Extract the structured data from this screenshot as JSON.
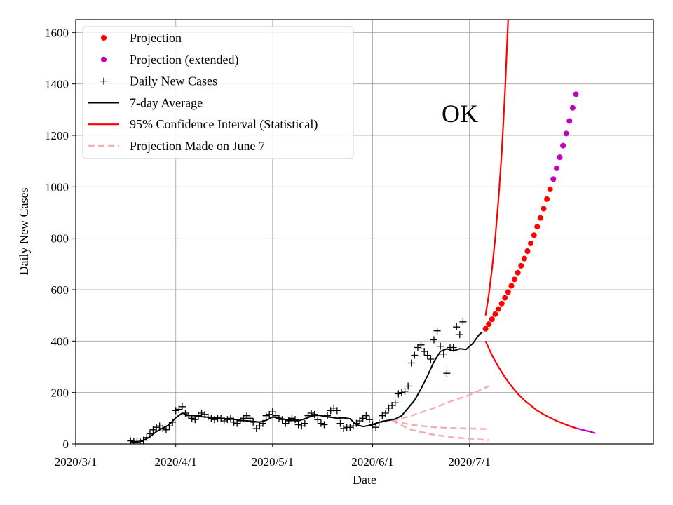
{
  "chart_data": {
    "type": "line",
    "title": "OK",
    "xlabel": "Date",
    "ylabel": "Daily New Cases",
    "ylim": [
      0,
      1650
    ],
    "x_range_days": [
      "2020-03-01",
      "2020-08-27"
    ],
    "x_ticks": [
      {
        "label": "2020/3/1",
        "day": 0
      },
      {
        "label": "2020/4/1",
        "day": 31
      },
      {
        "label": "2020/5/1",
        "day": 61
      },
      {
        "label": "2020/6/1",
        "day": 92
      },
      {
        "label": "2020/7/1",
        "day": 122
      }
    ],
    "y_ticks": [
      0,
      200,
      400,
      600,
      800,
      1000,
      1200,
      1400,
      1600
    ],
    "grid": true,
    "legend_position": "top-left",
    "legend": [
      {
        "label": "Projection",
        "kind": "dot",
        "color": "#ff0000"
      },
      {
        "label": "Projection (extended)",
        "kind": "dot",
        "color": "#bf00bf"
      },
      {
        "label": "Daily New Cases",
        "kind": "plus",
        "color": "#000000"
      },
      {
        "label": "7-day Average",
        "kind": "line",
        "color": "#000000"
      },
      {
        "label": "95% Confidence Interval (Statistical)",
        "kind": "line",
        "color": "#ff0000"
      },
      {
        "label": "Projection Made on June 7",
        "kind": "dash",
        "color": "#f5b0b0"
      }
    ],
    "series": [
      {
        "name": "Daily New Cases",
        "x_start_day": 17,
        "values": [
          12,
          10,
          8,
          10,
          15,
          25,
          40,
          55,
          65,
          70,
          60,
          55,
          70,
          85,
          130,
          135,
          145,
          120,
          110,
          100,
          95,
          110,
          120,
          115,
          105,
          100,
          95,
          100,
          100,
          90,
          95,
          100,
          85,
          80,
          90,
          100,
          110,
          100,
          85,
          60,
          70,
          80,
          110,
          115,
          125,
          110,
          100,
          95,
          80,
          90,
          100,
          95,
          75,
          70,
          80,
          110,
          120,
          115,
          95,
          80,
          75,
          110,
          130,
          140,
          130,
          80,
          60,
          65,
          65,
          70,
          80,
          90,
          100,
          110,
          95,
          75,
          65,
          85,
          110,
          120,
          140,
          150,
          160,
          195,
          200,
          205,
          225,
          315,
          345,
          375,
          385,
          360,
          345,
          330,
          405,
          440,
          380,
          350,
          275,
          375,
          375,
          455,
          425,
          475
        ]
      },
      {
        "name": "7-day Average",
        "points": [
          [
            17,
            5
          ],
          [
            19,
            8
          ],
          [
            21,
            14
          ],
          [
            23,
            28
          ],
          [
            25,
            48
          ],
          [
            27,
            62
          ],
          [
            29,
            75
          ],
          [
            31,
            102
          ],
          [
            33,
            120
          ],
          [
            35,
            112
          ],
          [
            37,
            110
          ],
          [
            39,
            106
          ],
          [
            41,
            104
          ],
          [
            43,
            102
          ],
          [
            45,
            100
          ],
          [
            47,
            98
          ],
          [
            49,
            96
          ],
          [
            51,
            92
          ],
          [
            53,
            90
          ],
          [
            55,
            88
          ],
          [
            57,
            85
          ],
          [
            59,
            92
          ],
          [
            61,
            105
          ],
          [
            63,
            102
          ],
          [
            65,
            95
          ],
          [
            67,
            92
          ],
          [
            69,
            90
          ],
          [
            71,
            98
          ],
          [
            73,
            108
          ],
          [
            75,
            112
          ],
          [
            77,
            108
          ],
          [
            79,
            104
          ],
          [
            81,
            100
          ],
          [
            83,
            102
          ],
          [
            85,
            98
          ],
          [
            87,
            75
          ],
          [
            89,
            68
          ],
          [
            91,
            72
          ],
          [
            93,
            80
          ],
          [
            95,
            88
          ],
          [
            97,
            92
          ],
          [
            99,
            97
          ],
          [
            101,
            110
          ],
          [
            103,
            140
          ],
          [
            105,
            170
          ],
          [
            107,
            215
          ],
          [
            109,
            265
          ],
          [
            111,
            320
          ],
          [
            113,
            360
          ],
          [
            115,
            370
          ],
          [
            117,
            362
          ],
          [
            119,
            370
          ],
          [
            121,
            368
          ],
          [
            123,
            390
          ],
          [
            125,
            425
          ],
          [
            126,
            435
          ]
        ]
      },
      {
        "name": "Projection",
        "x_start_day": 127,
        "values": [
          448,
          466,
          485,
          505,
          525,
          546,
          568,
          591,
          615,
          640,
          666,
          693,
          721,
          750,
          780,
          812,
          845,
          879,
          915,
          952,
          990
        ]
      },
      {
        "name": "Projection (extended)",
        "x_start_day": 148,
        "values": [
          1030,
          1072,
          1115,
          1160,
          1207,
          1256,
          1307,
          1360
        ]
      },
      {
        "name": "95% Confidence Interval (Statistical) upper",
        "points": [
          [
            127,
            500
          ],
          [
            128,
            580
          ],
          [
            129,
            680
          ],
          [
            130,
            800
          ],
          [
            131,
            950
          ],
          [
            132,
            1130
          ],
          [
            133,
            1360
          ],
          [
            134,
            1650
          ]
        ]
      },
      {
        "name": "95% Confidence Interval (Statistical) lower",
        "points": [
          [
            127,
            400
          ],
          [
            129,
            345
          ],
          [
            131,
            300
          ],
          [
            133,
            260
          ],
          [
            135,
            225
          ],
          [
            137,
            195
          ],
          [
            139,
            170
          ],
          [
            141,
            150
          ],
          [
            143,
            130
          ],
          [
            145,
            115
          ],
          [
            147,
            102
          ],
          [
            149,
            90
          ],
          [
            151,
            80
          ],
          [
            153,
            70
          ],
          [
            155,
            62
          ]
        ]
      },
      {
        "name": "95% Confidence Interval (Statistical) lower extended",
        "points": [
          [
            155,
            62
          ],
          [
            157,
            55
          ],
          [
            159,
            49
          ],
          [
            161,
            42
          ]
        ]
      },
      {
        "name": "Projection Made on June 7 upper",
        "points": [
          [
            98,
            90
          ],
          [
            104,
            110
          ],
          [
            110,
            135
          ],
          [
            116,
            165
          ],
          [
            122,
            190
          ],
          [
            128,
            225
          ]
        ]
      },
      {
        "name": "Projection Made on June 7 middle",
        "points": [
          [
            98,
            90
          ],
          [
            104,
            75
          ],
          [
            110,
            66
          ],
          [
            116,
            62
          ],
          [
            122,
            60
          ],
          [
            128,
            58
          ]
        ]
      },
      {
        "name": "Projection Made on June 7 lower",
        "points": [
          [
            98,
            90
          ],
          [
            104,
            55
          ],
          [
            110,
            38
          ],
          [
            116,
            27
          ],
          [
            122,
            20
          ],
          [
            128,
            15
          ]
        ]
      }
    ]
  }
}
